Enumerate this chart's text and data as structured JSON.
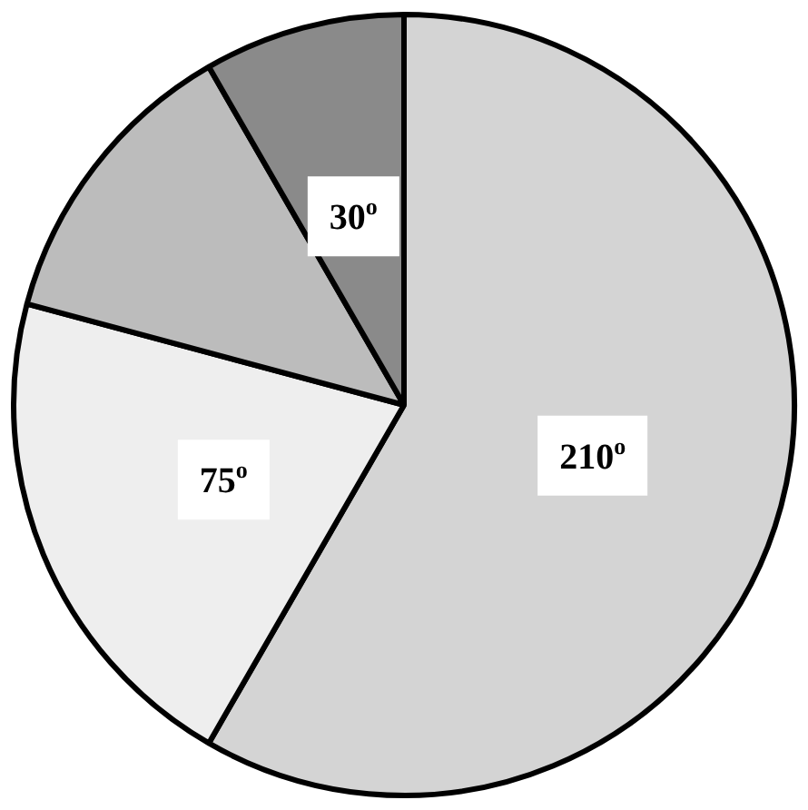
{
  "chart_data": {
    "type": "pie",
    "categories": [
      null,
      null,
      null,
      null
    ],
    "values": [
      210,
      75,
      45,
      30
    ],
    "colors": [
      "#d4d4d4",
      "#eeeeee",
      "#bcbcbc",
      "#8a8a8a"
    ],
    "value_labels": [
      "210$^{o}$",
      "75$^{o}$",
      null,
      "30$^{o}$"
    ]
  }
}
